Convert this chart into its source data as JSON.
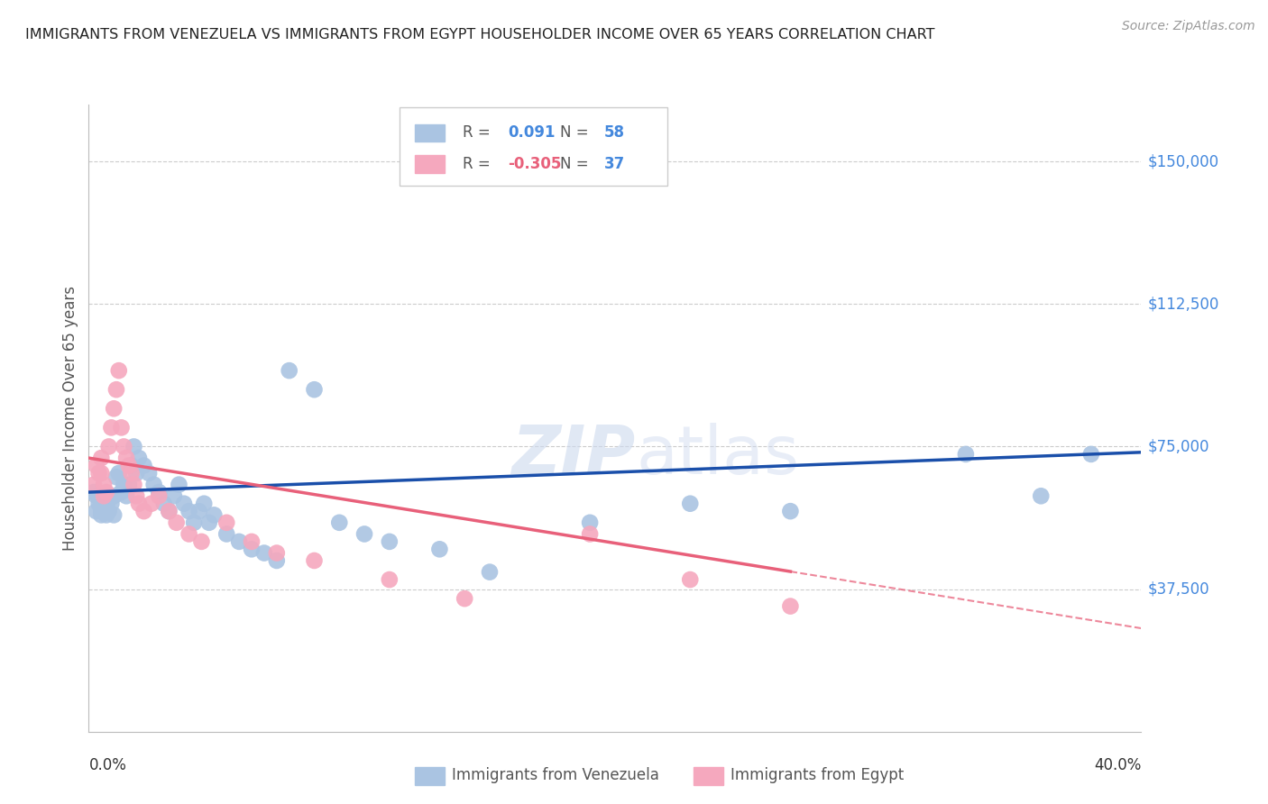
{
  "title": "IMMIGRANTS FROM VENEZUELA VS IMMIGRANTS FROM EGYPT HOUSEHOLDER INCOME OVER 65 YEARS CORRELATION CHART",
  "source": "Source: ZipAtlas.com",
  "ylabel": "Householder Income Over 65 years",
  "ytick_labels": [
    "$37,500",
    "$75,000",
    "$112,500",
    "$150,000"
  ],
  "ytick_values": [
    37500,
    75000,
    112500,
    150000
  ],
  "ymin": 0,
  "ymax": 165000,
  "xmin": 0.0,
  "xmax": 0.42,
  "watermark_zip": "ZIP",
  "watermark_atlas": "atlas",
  "venezuela_R": 0.091,
  "venezuela_N": 58,
  "egypt_R": -0.305,
  "egypt_N": 37,
  "venezuela_color": "#aac4e2",
  "egypt_color": "#f5a8be",
  "venezuela_line_color": "#1a4faa",
  "egypt_line_color": "#e8607a",
  "venezuela_x": [
    0.002,
    0.003,
    0.003,
    0.004,
    0.005,
    0.005,
    0.006,
    0.006,
    0.007,
    0.007,
    0.008,
    0.008,
    0.009,
    0.01,
    0.01,
    0.011,
    0.012,
    0.013,
    0.014,
    0.015,
    0.016,
    0.017,
    0.018,
    0.019,
    0.02,
    0.022,
    0.024,
    0.026,
    0.028,
    0.03,
    0.032,
    0.034,
    0.036,
    0.038,
    0.04,
    0.042,
    0.044,
    0.046,
    0.048,
    0.05,
    0.055,
    0.06,
    0.065,
    0.07,
    0.075,
    0.08,
    0.09,
    0.1,
    0.11,
    0.12,
    0.14,
    0.16,
    0.2,
    0.24,
    0.28,
    0.35,
    0.38,
    0.4
  ],
  "venezuela_y": [
    63000,
    62000,
    58000,
    60000,
    58000,
    57000,
    60000,
    58000,
    59000,
    57000,
    61000,
    58000,
    60000,
    62000,
    57000,
    67000,
    68000,
    63000,
    65000,
    62000,
    65000,
    70000,
    75000,
    68000,
    72000,
    70000,
    68000,
    65000,
    63000,
    60000,
    58000,
    62000,
    65000,
    60000,
    58000,
    55000,
    58000,
    60000,
    55000,
    57000,
    52000,
    50000,
    48000,
    47000,
    45000,
    95000,
    90000,
    55000,
    52000,
    50000,
    48000,
    42000,
    55000,
    60000,
    58000,
    73000,
    62000,
    73000
  ],
  "egypt_x": [
    0.002,
    0.003,
    0.004,
    0.005,
    0.005,
    0.006,
    0.006,
    0.007,
    0.008,
    0.009,
    0.01,
    0.011,
    0.012,
    0.013,
    0.014,
    0.015,
    0.016,
    0.017,
    0.018,
    0.019,
    0.02,
    0.022,
    0.025,
    0.028,
    0.032,
    0.035,
    0.04,
    0.045,
    0.055,
    0.065,
    0.075,
    0.09,
    0.12,
    0.15,
    0.2,
    0.24,
    0.28
  ],
  "egypt_y": [
    65000,
    70000,
    68000,
    72000,
    68000,
    65000,
    62000,
    63000,
    75000,
    80000,
    85000,
    90000,
    95000,
    80000,
    75000,
    72000,
    70000,
    68000,
    65000,
    62000,
    60000,
    58000,
    60000,
    62000,
    58000,
    55000,
    52000,
    50000,
    55000,
    50000,
    47000,
    45000,
    40000,
    35000,
    52000,
    40000,
    33000
  ],
  "grid_color": "#cccccc",
  "background_color": "#ffffff",
  "title_color": "#222222",
  "tick_color": "#4488dd"
}
